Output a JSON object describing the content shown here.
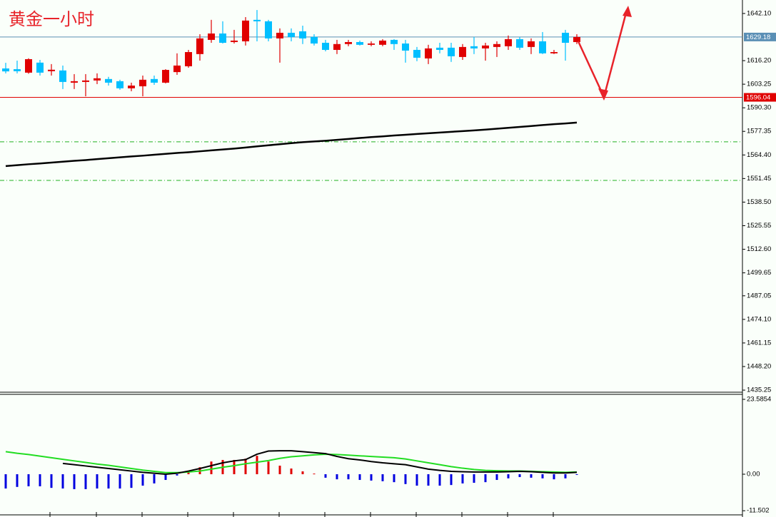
{
  "chart_data": [
    {
      "type": "candlestick",
      "title": "黄金一小时",
      "up_color": "#e00000",
      "down_color": "#00bfff",
      "open": [
        1611.9,
        1611.5,
        1609.6,
        1615.1,
        1610.4,
        1610.8,
        1604.1,
        1604.5,
        1605.3,
        1606.1,
        1604.9,
        1601.0,
        1602.1,
        1606.1,
        1604.1,
        1609.9,
        1613.1,
        1619.8,
        1627.6,
        1631.1,
        1626.4,
        1626.8,
        1638.6,
        1637.8,
        1628.4,
        1631.5,
        1632.3,
        1629.2,
        1626.0,
        1622.1,
        1625.3,
        1626.4,
        1624.9,
        1624.9,
        1627.6,
        1625.6,
        1622.1,
        1617.4,
        1623.3,
        1623.3,
        1618.2,
        1624.1,
        1622.9,
        1623.7,
        1624.1,
        1628.0,
        1623.7,
        1626.8,
        1620.2,
        1631.5,
        1626.4
      ],
      "high": [
        1615.0,
        1616.2,
        1617.5,
        1616.6,
        1614.3,
        1613.5,
        1608.8,
        1608.8,
        1609.2,
        1607.3,
        1605.7,
        1604.1,
        1608.0,
        1608.0,
        1611.5,
        1620.2,
        1622.1,
        1630.7,
        1638.6,
        1637.8,
        1633.1,
        1640.1,
        1644.0,
        1638.6,
        1633.9,
        1633.9,
        1635.4,
        1630.7,
        1627.6,
        1627.6,
        1627.6,
        1627.2,
        1626.8,
        1628.0,
        1628.0,
        1627.6,
        1623.7,
        1624.9,
        1626.0,
        1626.0,
        1625.3,
        1629.2,
        1626.0,
        1626.8,
        1630.0,
        1629.2,
        1628.4,
        1631.9,
        1622.1,
        1633.1,
        1630.7
      ],
      "low": [
        1609.2,
        1609.2,
        1609.0,
        1608.0,
        1608.0,
        1600.6,
        1600.6,
        1596.6,
        1603.3,
        1602.5,
        1600.2,
        1599.4,
        1596.6,
        1602.9,
        1603.7,
        1608.4,
        1612.3,
        1616.2,
        1626.0,
        1625.6,
        1625.6,
        1624.5,
        1626.8,
        1626.8,
        1615.1,
        1626.8,
        1625.3,
        1624.5,
        1621.3,
        1619.8,
        1624.1,
        1624.5,
        1624.1,
        1624.1,
        1622.1,
        1615.1,
        1615.9,
        1614.3,
        1620.2,
        1615.5,
        1616.6,
        1619.8,
        1616.2,
        1618.2,
        1622.1,
        1622.1,
        1619.8,
        1619.8,
        1619.8,
        1616.2,
        1625.3
      ],
      "close": [
        1610.3,
        1610.4,
        1617.0,
        1609.6,
        1611.2,
        1604.5,
        1604.9,
        1605.3,
        1606.5,
        1604.1,
        1601.0,
        1602.5,
        1605.7,
        1604.1,
        1611.1,
        1613.5,
        1620.9,
        1628.4,
        1631.1,
        1626.0,
        1627.2,
        1638.2,
        1637.8,
        1628.4,
        1631.5,
        1629.2,
        1628.4,
        1625.6,
        1622.1,
        1625.3,
        1626.4,
        1624.9,
        1625.6,
        1627.2,
        1625.3,
        1621.7,
        1617.8,
        1622.9,
        1622.1,
        1618.6,
        1623.7,
        1622.9,
        1624.5,
        1625.3,
        1628.0,
        1623.3,
        1626.8,
        1620.2,
        1620.9,
        1626.0,
        1629.18
      ],
      "ma": {
        "color": "#000000",
        "values": [
          1558.3,
          1558.8,
          1559.3,
          1559.7,
          1560.2,
          1560.7,
          1561.2,
          1561.6,
          1562.1,
          1562.6,
          1563.1,
          1563.6,
          1564.0,
          1564.5,
          1565.0,
          1565.5,
          1565.9,
          1566.4,
          1566.9,
          1567.4,
          1567.9,
          1568.5,
          1569.1,
          1569.7,
          1570.3,
          1570.9,
          1571.4,
          1571.8,
          1572.2,
          1572.7,
          1573.2,
          1573.7,
          1574.2,
          1574.6,
          1575.1,
          1575.5,
          1575.9,
          1576.3,
          1576.7,
          1577.1,
          1577.5,
          1577.9,
          1578.3,
          1578.8,
          1579.3,
          1579.8,
          1580.3,
          1580.8,
          1581.3,
          1581.7,
          1582.2
        ]
      },
      "levels": [
        {
          "value": 1629.18,
          "color": "#5a8fb5"
        },
        {
          "value": 1596.04,
          "color": "#e00000"
        }
      ],
      "guides": {
        "color": "#22b022",
        "values": [
          1571.6,
          1550.4
        ]
      },
      "ylim": [
        1434.1,
        1649.5
      ],
      "yticks": [
        {
          "value": 1642.1,
          "label": "1642.10"
        },
        {
          "value": 1616.2,
          "label": "1616.20"
        },
        1603.25,
        {
          "value": 1590.3,
          "label": "1590.30"
        },
        1577.35,
        {
          "value": 1564.4,
          "label": "1564.40"
        },
        1551.45,
        {
          "value": 1538.5,
          "label": "1538.50"
        },
        1525.55,
        {
          "value": 1512.6,
          "label": "1512.60"
        },
        1499.65,
        1487.05,
        {
          "value": 1474.1,
          "label": "1474.10"
        },
        1461.15,
        {
          "value": 1448.2,
          "label": "1448.20"
        },
        1435.25
      ]
    },
    {
      "type": "macd",
      "histogram": {
        "up_color": "#e00000",
        "down_color": "#0000e0",
        "values": [
          -4.5,
          -4.0,
          -3.8,
          -3.8,
          -4.3,
          -4.5,
          -4.7,
          -4.7,
          -4.5,
          -4.5,
          -4.5,
          -4.3,
          -3.6,
          -2.9,
          -1.8,
          -0.4,
          0.7,
          2.2,
          4.0,
          4.5,
          4.5,
          4.9,
          5.8,
          4.0,
          2.7,
          1.8,
          0.9,
          0.2,
          -1.1,
          -1.6,
          -1.6,
          -1.8,
          -2.0,
          -2.2,
          -2.5,
          -3.1,
          -3.6,
          -3.6,
          -3.6,
          -3.4,
          -2.9,
          -2.7,
          -2.5,
          -1.8,
          -1.3,
          -0.9,
          -1.1,
          -1.3,
          -1.6,
          -1.3,
          -0.2
        ]
      },
      "series": [
        {
          "color": "#22dd22",
          "values": [
            7.1,
            6.6,
            6.2,
            5.7,
            5.2,
            4.7,
            4.2,
            3.7,
            3.2,
            2.8,
            2.3,
            1.8,
            1.3,
            0.9,
            0.5,
            0.5,
            0.7,
            1.0,
            1.6,
            2.2,
            2.7,
            3.3,
            3.8,
            4.3,
            5.0,
            5.5,
            5.8,
            6.1,
            6.3,
            6.2,
            6.0,
            5.8,
            5.6,
            5.4,
            5.2,
            4.8,
            4.2,
            3.6,
            3.0,
            2.4,
            1.9,
            1.5,
            1.2,
            1.1,
            1.0,
            1.0,
            0.9,
            0.8,
            0.7,
            0.6,
            0.7
          ]
        },
        {
          "color": "#000000",
          "values": [
            null,
            null,
            null,
            null,
            null,
            3.4,
            3.0,
            2.6,
            2.2,
            1.8,
            1.4,
            1.0,
            0.6,
            0.3,
            0.0,
            0.3,
            1.0,
            1.8,
            2.7,
            3.6,
            4.2,
            4.6,
            6.3,
            7.3,
            7.4,
            7.4,
            7.1,
            6.8,
            6.5,
            5.6,
            4.9,
            4.5,
            4.0,
            3.6,
            3.3,
            3.0,
            2.3,
            1.6,
            1.2,
            0.9,
            0.8,
            0.7,
            0.7,
            0.7,
            0.8,
            0.9,
            0.8,
            0.6,
            0.4,
            0.4,
            0.6
          ]
        }
      ],
      "ylim": [
        -12.8,
        25.16
      ],
      "yticks": [
        23.5854,
        {
          "value": 0,
          "label": "0.00"
        },
        -11.502
      ]
    }
  ]
}
